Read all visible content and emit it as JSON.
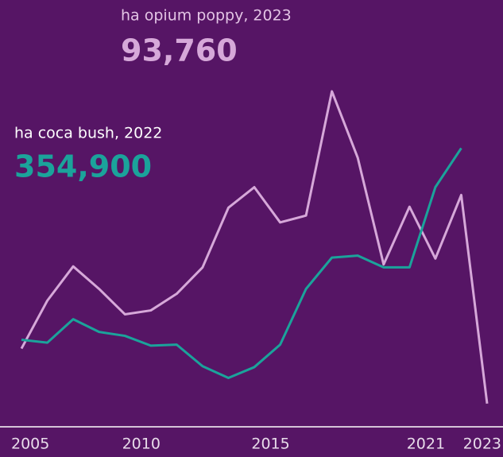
{
  "chart_data": {
    "type": "line",
    "x": [
      2005,
      2006,
      2007,
      2008,
      2009,
      2010,
      2011,
      2012,
      2013,
      2014,
      2015,
      2016,
      2017,
      2018,
      2019,
      2020,
      2021,
      2022,
      2023
    ],
    "xlim": [
      2005,
      2023
    ],
    "xticks": [
      2005,
      2010,
      2015,
      2021,
      2023
    ],
    "ylim": [
      70000,
      430000
    ],
    "series": [
      {
        "name": "ha opium poppy, 2023",
        "color": "#d6a8d9",
        "values": [
          150000,
          199000,
          234000,
          211000,
          185000,
          189000,
          206000,
          233000,
          294000,
          315000,
          279000,
          286000,
          413000,
          345000,
          236000,
          295000,
          242000,
          307000,
          93760
        ],
        "value_labels": [
          null,
          null,
          null,
          null,
          null,
          null,
          null,
          null,
          null,
          null,
          null,
          null,
          null,
          null,
          null,
          null,
          null,
          null,
          "93,760"
        ]
      },
      {
        "name": "ha coca bush, 2022",
        "color": "#1ba39b",
        "values": [
          159000,
          156000,
          180000,
          167000,
          163000,
          153000,
          154000,
          132000,
          120000,
          131000,
          154000,
          211000,
          243000,
          245000,
          233000,
          233000,
          315000,
          354900,
          null
        ],
        "value_labels": [
          null,
          null,
          null,
          null,
          null,
          null,
          null,
          null,
          null,
          null,
          null,
          null,
          null,
          null,
          null,
          null,
          null,
          "354,900",
          null
        ]
      }
    ]
  }
}
